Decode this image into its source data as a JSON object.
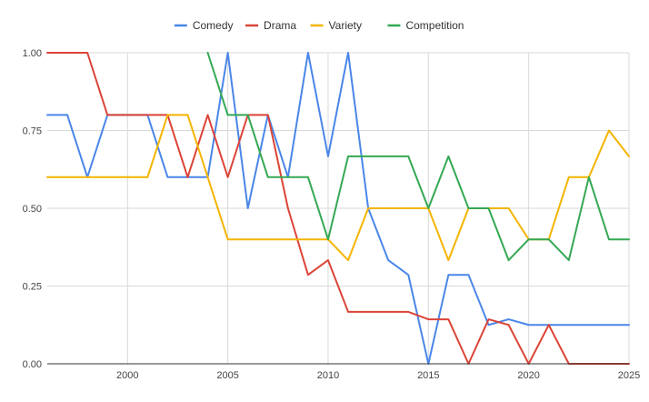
{
  "chart_data": {
    "type": "line",
    "title": "",
    "xlabel": "",
    "ylabel": "",
    "xlim": [
      1996,
      2025
    ],
    "ylim": [
      0,
      1
    ],
    "x_ticks": [
      2000,
      2005,
      2010,
      2015,
      2020,
      2025
    ],
    "y_ticks": [
      0,
      0.25,
      0.5,
      0.75,
      1
    ],
    "x_tick_labels": [
      "2000",
      "2005",
      "2010",
      "2015",
      "2020",
      "2025"
    ],
    "y_tick_labels": [
      "0.00",
      "0.25",
      "0.50",
      "0.75",
      "1.00"
    ],
    "grid": true,
    "legend_position": "top",
    "x": [
      1996,
      1997,
      1998,
      1999,
      2000,
      2001,
      2002,
      2003,
      2004,
      2005,
      2006,
      2007,
      2008,
      2009,
      2010,
      2011,
      2012,
      2013,
      2014,
      2015,
      2016,
      2017,
      2018,
      2019,
      2020,
      2021,
      2022,
      2023,
      2024,
      2025
    ],
    "series": [
      {
        "name": "Comedy",
        "color": "#4a86e8",
        "values": [
          0.8,
          0.8,
          0.6,
          0.8,
          0.8,
          0.8,
          0.6,
          0.6,
          0.6,
          1.0,
          0.5,
          0.8,
          0.6,
          1.0,
          0.667,
          1.0,
          0.5,
          0.333,
          0.286,
          0,
          0.286,
          0.286,
          0.125,
          0.143,
          0.125,
          0.125,
          0.125,
          0.125,
          0.125,
          0.125
        ]
      },
      {
        "name": "Drama",
        "color": "#db4437",
        "values": [
          1.0,
          1.0,
          1.0,
          0.8,
          0.8,
          0.8,
          0.8,
          0.6,
          0.8,
          0.6,
          0.8,
          0.8,
          0.5,
          0.286,
          0.333,
          0.167,
          0.167,
          0.167,
          0.167,
          0.143,
          0.143,
          0,
          0.143,
          0.125,
          0,
          0.125,
          0,
          0,
          0,
          0
        ]
      },
      {
        "name": "Variety",
        "color": "#f4b400",
        "values": [
          0.6,
          0.6,
          0.6,
          0.6,
          0.6,
          0.6,
          0.8,
          0.8,
          0.6,
          0.4,
          0.4,
          0.4,
          0.4,
          0.4,
          0.4,
          0.333,
          0.5,
          0.5,
          0.5,
          0.5,
          0.333,
          0.5,
          0.5,
          0.5,
          0.4,
          0.4,
          0.6,
          0.6,
          0.75,
          0.667
        ]
      },
      {
        "name": "Competition",
        "color": "#34a853",
        "values": [
          null,
          null,
          null,
          null,
          null,
          null,
          null,
          null,
          1.0,
          0.8,
          0.8,
          0.6,
          0.6,
          0.6,
          0.4,
          0.667,
          0.667,
          0.667,
          0.667,
          0.5,
          0.667,
          0.5,
          0.5,
          0.333,
          0.4,
          0.4,
          0.333,
          0.6,
          0.4,
          0.4
        ]
      }
    ]
  }
}
